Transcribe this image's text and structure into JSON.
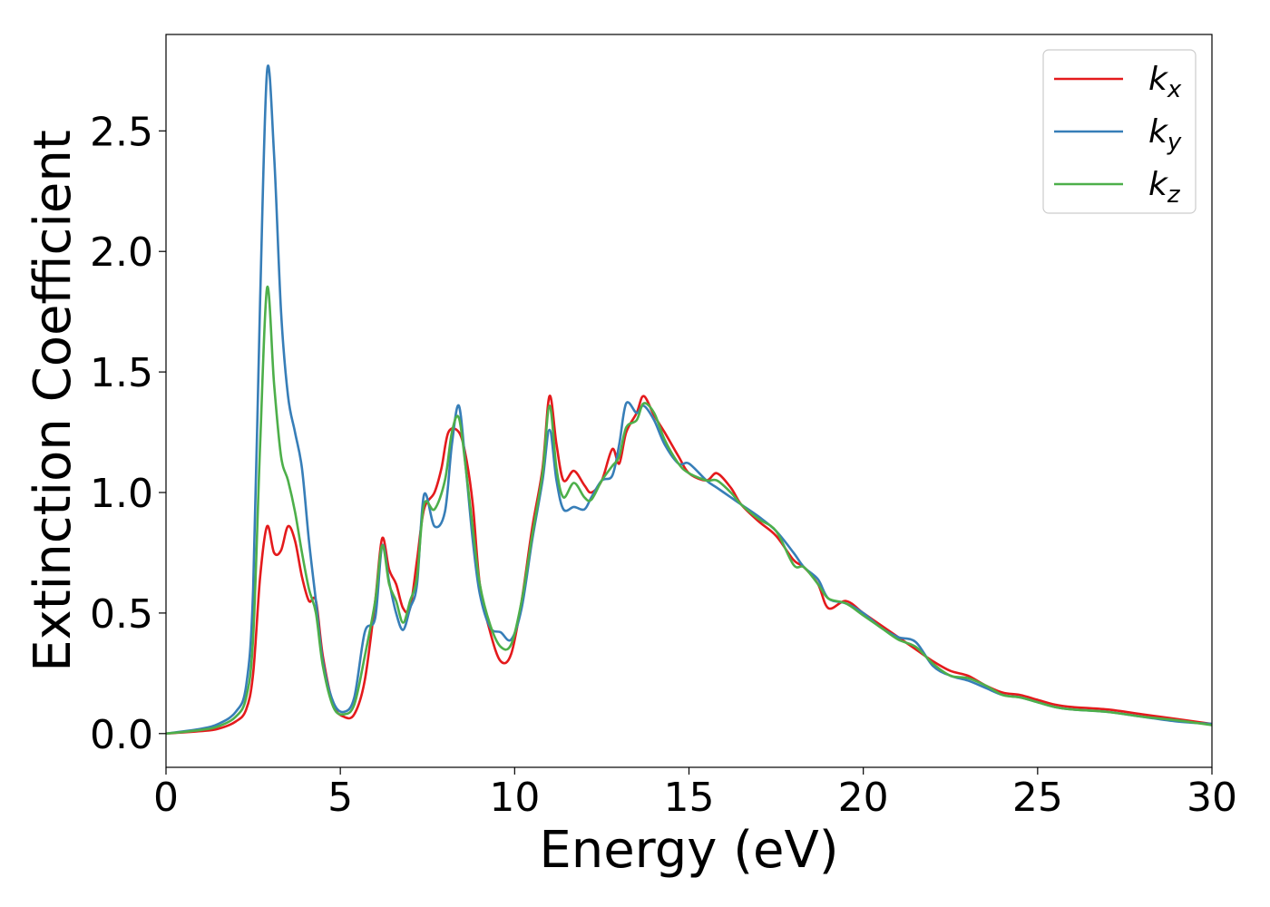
{
  "chart_data": {
    "type": "line",
    "title": "",
    "xlabel": "Energy (eV)",
    "ylabel": "Extinction Coefficient",
    "xlim": [
      0,
      30
    ],
    "ylim": [
      -0.14,
      2.9
    ],
    "xticks": [
      0,
      5,
      10,
      15,
      20,
      25,
      30
    ],
    "xtick_labels": [
      "0",
      "5",
      "10",
      "15",
      "20",
      "25",
      "30"
    ],
    "yticks": [
      0.0,
      0.5,
      1.0,
      1.5,
      2.0,
      2.5
    ],
    "ytick_labels": [
      "0.0",
      "0.5",
      "1.0",
      "1.5",
      "2.0",
      "2.5"
    ],
    "grid": false,
    "legend_position": "top-right",
    "series": [
      {
        "name": "k_x",
        "label_base": "k",
        "label_sub": "x",
        "color": "#e41a1c",
        "points": [
          [
            0,
            0
          ],
          [
            1,
            0.01
          ],
          [
            1.5,
            0.02
          ],
          [
            2,
            0.05
          ],
          [
            2.3,
            0.1
          ],
          [
            2.5,
            0.25
          ],
          [
            2.7,
            0.65
          ],
          [
            2.9,
            0.86
          ],
          [
            3.1,
            0.75
          ],
          [
            3.3,
            0.76
          ],
          [
            3.5,
            0.86
          ],
          [
            3.7,
            0.8
          ],
          [
            3.9,
            0.65
          ],
          [
            4.1,
            0.55
          ],
          [
            4.3,
            0.55
          ],
          [
            4.5,
            0.32
          ],
          [
            4.8,
            0.12
          ],
          [
            5.1,
            0.07
          ],
          [
            5.4,
            0.08
          ],
          [
            5.7,
            0.22
          ],
          [
            6.0,
            0.55
          ],
          [
            6.2,
            0.81
          ],
          [
            6.4,
            0.68
          ],
          [
            6.6,
            0.62
          ],
          [
            6.8,
            0.52
          ],
          [
            7.0,
            0.52
          ],
          [
            7.2,
            0.72
          ],
          [
            7.4,
            0.93
          ],
          [
            7.7,
            1.0
          ],
          [
            7.9,
            1.1
          ],
          [
            8.1,
            1.25
          ],
          [
            8.4,
            1.25
          ],
          [
            8.6,
            1.15
          ],
          [
            8.8,
            0.95
          ],
          [
            9.0,
            0.62
          ],
          [
            9.3,
            0.42
          ],
          [
            9.6,
            0.3
          ],
          [
            9.9,
            0.33
          ],
          [
            10.2,
            0.55
          ],
          [
            10.5,
            0.85
          ],
          [
            10.8,
            1.1
          ],
          [
            11.0,
            1.4
          ],
          [
            11.2,
            1.2
          ],
          [
            11.4,
            1.05
          ],
          [
            11.7,
            1.09
          ],
          [
            12.0,
            1.03
          ],
          [
            12.2,
            1.0
          ],
          [
            12.5,
            1.05
          ],
          [
            12.8,
            1.18
          ],
          [
            13.0,
            1.12
          ],
          [
            13.2,
            1.25
          ],
          [
            13.5,
            1.33
          ],
          [
            13.7,
            1.4
          ],
          [
            14.0,
            1.32
          ],
          [
            14.3,
            1.25
          ],
          [
            14.7,
            1.15
          ],
          [
            15.0,
            1.08
          ],
          [
            15.5,
            1.05
          ],
          [
            15.8,
            1.08
          ],
          [
            16.2,
            1.02
          ],
          [
            16.5,
            0.95
          ],
          [
            17.0,
            0.88
          ],
          [
            17.5,
            0.82
          ],
          [
            18.0,
            0.72
          ],
          [
            18.3,
            0.69
          ],
          [
            18.7,
            0.62
          ],
          [
            19.0,
            0.52
          ],
          [
            19.5,
            0.55
          ],
          [
            20.0,
            0.5
          ],
          [
            20.5,
            0.45
          ],
          [
            21.0,
            0.4
          ],
          [
            21.5,
            0.35
          ],
          [
            22.0,
            0.3
          ],
          [
            22.5,
            0.26
          ],
          [
            23.0,
            0.24
          ],
          [
            23.5,
            0.2
          ],
          [
            24.0,
            0.17
          ],
          [
            24.5,
            0.16
          ],
          [
            25.0,
            0.14
          ],
          [
            25.5,
            0.12
          ],
          [
            26.0,
            0.11
          ],
          [
            27.0,
            0.1
          ],
          [
            28.0,
            0.08
          ],
          [
            29.0,
            0.06
          ],
          [
            30.0,
            0.04
          ]
        ]
      },
      {
        "name": "k_y",
        "label_base": "k",
        "label_sub": "y",
        "color": "#377eb8",
        "points": [
          [
            0,
            0
          ],
          [
            1,
            0.02
          ],
          [
            1.5,
            0.04
          ],
          [
            2,
            0.09
          ],
          [
            2.3,
            0.2
          ],
          [
            2.5,
            0.6
          ],
          [
            2.7,
            1.8
          ],
          [
            2.9,
            2.75
          ],
          [
            3.1,
            2.4
          ],
          [
            3.3,
            1.75
          ],
          [
            3.5,
            1.4
          ],
          [
            3.7,
            1.25
          ],
          [
            3.9,
            1.1
          ],
          [
            4.1,
            0.8
          ],
          [
            4.3,
            0.55
          ],
          [
            4.5,
            0.3
          ],
          [
            4.8,
            0.13
          ],
          [
            5.1,
            0.09
          ],
          [
            5.4,
            0.15
          ],
          [
            5.7,
            0.42
          ],
          [
            6.0,
            0.48
          ],
          [
            6.2,
            0.78
          ],
          [
            6.4,
            0.63
          ],
          [
            6.6,
            0.5
          ],
          [
            6.8,
            0.43
          ],
          [
            7.0,
            0.52
          ],
          [
            7.2,
            0.62
          ],
          [
            7.4,
            0.99
          ],
          [
            7.7,
            0.86
          ],
          [
            8.0,
            0.92
          ],
          [
            8.2,
            1.2
          ],
          [
            8.4,
            1.36
          ],
          [
            8.6,
            1.1
          ],
          [
            8.8,
            0.8
          ],
          [
            9.0,
            0.58
          ],
          [
            9.3,
            0.44
          ],
          [
            9.6,
            0.42
          ],
          [
            9.9,
            0.39
          ],
          [
            10.2,
            0.52
          ],
          [
            10.5,
            0.8
          ],
          [
            10.8,
            1.05
          ],
          [
            11.0,
            1.26
          ],
          [
            11.2,
            1.05
          ],
          [
            11.4,
            0.93
          ],
          [
            11.7,
            0.94
          ],
          [
            12.0,
            0.93
          ],
          [
            12.2,
            0.98
          ],
          [
            12.5,
            1.05
          ],
          [
            12.8,
            1.07
          ],
          [
            13.0,
            1.2
          ],
          [
            13.2,
            1.37
          ],
          [
            13.5,
            1.33
          ],
          [
            13.7,
            1.36
          ],
          [
            14.0,
            1.3
          ],
          [
            14.3,
            1.2
          ],
          [
            14.7,
            1.12
          ],
          [
            15.0,
            1.12
          ],
          [
            15.5,
            1.05
          ],
          [
            15.8,
            1.02
          ],
          [
            16.2,
            0.98
          ],
          [
            16.5,
            0.95
          ],
          [
            17.0,
            0.9
          ],
          [
            17.5,
            0.84
          ],
          [
            18.0,
            0.75
          ],
          [
            18.3,
            0.69
          ],
          [
            18.7,
            0.64
          ],
          [
            19.0,
            0.56
          ],
          [
            19.5,
            0.54
          ],
          [
            20.0,
            0.5
          ],
          [
            20.5,
            0.44
          ],
          [
            21.0,
            0.4
          ],
          [
            21.5,
            0.38
          ],
          [
            22.0,
            0.28
          ],
          [
            22.5,
            0.24
          ],
          [
            23.0,
            0.22
          ],
          [
            23.5,
            0.19
          ],
          [
            24.0,
            0.16
          ],
          [
            24.5,
            0.15
          ],
          [
            25.0,
            0.13
          ],
          [
            25.5,
            0.11
          ],
          [
            26.0,
            0.1
          ],
          [
            27.0,
            0.09
          ],
          [
            28.0,
            0.07
          ],
          [
            29.0,
            0.05
          ],
          [
            30.0,
            0.04
          ]
        ]
      },
      {
        "name": "k_z",
        "label_base": "k",
        "label_sub": "z",
        "color": "#4daf4a",
        "points": [
          [
            0,
            0
          ],
          [
            1,
            0.015
          ],
          [
            1.5,
            0.03
          ],
          [
            2,
            0.07
          ],
          [
            2.3,
            0.15
          ],
          [
            2.5,
            0.4
          ],
          [
            2.7,
            1.2
          ],
          [
            2.9,
            1.85
          ],
          [
            3.1,
            1.45
          ],
          [
            3.3,
            1.15
          ],
          [
            3.5,
            1.05
          ],
          [
            3.7,
            0.92
          ],
          [
            3.9,
            0.75
          ],
          [
            4.1,
            0.6
          ],
          [
            4.3,
            0.5
          ],
          [
            4.5,
            0.28
          ],
          [
            4.8,
            0.11
          ],
          [
            5.1,
            0.08
          ],
          [
            5.4,
            0.12
          ],
          [
            5.7,
            0.32
          ],
          [
            6.0,
            0.55
          ],
          [
            6.2,
            0.78
          ],
          [
            6.4,
            0.62
          ],
          [
            6.6,
            0.55
          ],
          [
            6.8,
            0.46
          ],
          [
            7.0,
            0.55
          ],
          [
            7.2,
            0.65
          ],
          [
            7.4,
            0.95
          ],
          [
            7.7,
            0.93
          ],
          [
            8.0,
            1.05
          ],
          [
            8.2,
            1.25
          ],
          [
            8.4,
            1.31
          ],
          [
            8.6,
            1.1
          ],
          [
            8.8,
            0.85
          ],
          [
            9.0,
            0.62
          ],
          [
            9.3,
            0.45
          ],
          [
            9.6,
            0.36
          ],
          [
            9.9,
            0.37
          ],
          [
            10.2,
            0.55
          ],
          [
            10.5,
            0.82
          ],
          [
            10.8,
            1.08
          ],
          [
            11.0,
            1.36
          ],
          [
            11.2,
            1.1
          ],
          [
            11.4,
            0.98
          ],
          [
            11.7,
            1.04
          ],
          [
            12.0,
            0.98
          ],
          [
            12.2,
            0.97
          ],
          [
            12.5,
            1.05
          ],
          [
            12.8,
            1.11
          ],
          [
            13.0,
            1.15
          ],
          [
            13.2,
            1.27
          ],
          [
            13.5,
            1.3
          ],
          [
            13.7,
            1.37
          ],
          [
            14.0,
            1.33
          ],
          [
            14.3,
            1.22
          ],
          [
            14.7,
            1.12
          ],
          [
            15.0,
            1.08
          ],
          [
            15.5,
            1.05
          ],
          [
            15.8,
            1.05
          ],
          [
            16.2,
            1.0
          ],
          [
            16.5,
            0.95
          ],
          [
            17.0,
            0.89
          ],
          [
            17.5,
            0.84
          ],
          [
            18.0,
            0.7
          ],
          [
            18.3,
            0.69
          ],
          [
            18.7,
            0.62
          ],
          [
            19.0,
            0.56
          ],
          [
            19.5,
            0.54
          ],
          [
            20.0,
            0.49
          ],
          [
            20.5,
            0.44
          ],
          [
            21.0,
            0.39
          ],
          [
            21.5,
            0.36
          ],
          [
            22.0,
            0.29
          ],
          [
            22.5,
            0.24
          ],
          [
            23.0,
            0.23
          ],
          [
            23.5,
            0.2
          ],
          [
            24.0,
            0.16
          ],
          [
            24.5,
            0.15
          ],
          [
            25.0,
            0.13
          ],
          [
            25.5,
            0.11
          ],
          [
            26.0,
            0.1
          ],
          [
            27.0,
            0.09
          ],
          [
            28.0,
            0.07
          ],
          [
            29.0,
            0.055
          ],
          [
            30.0,
            0.035
          ]
        ]
      }
    ]
  }
}
